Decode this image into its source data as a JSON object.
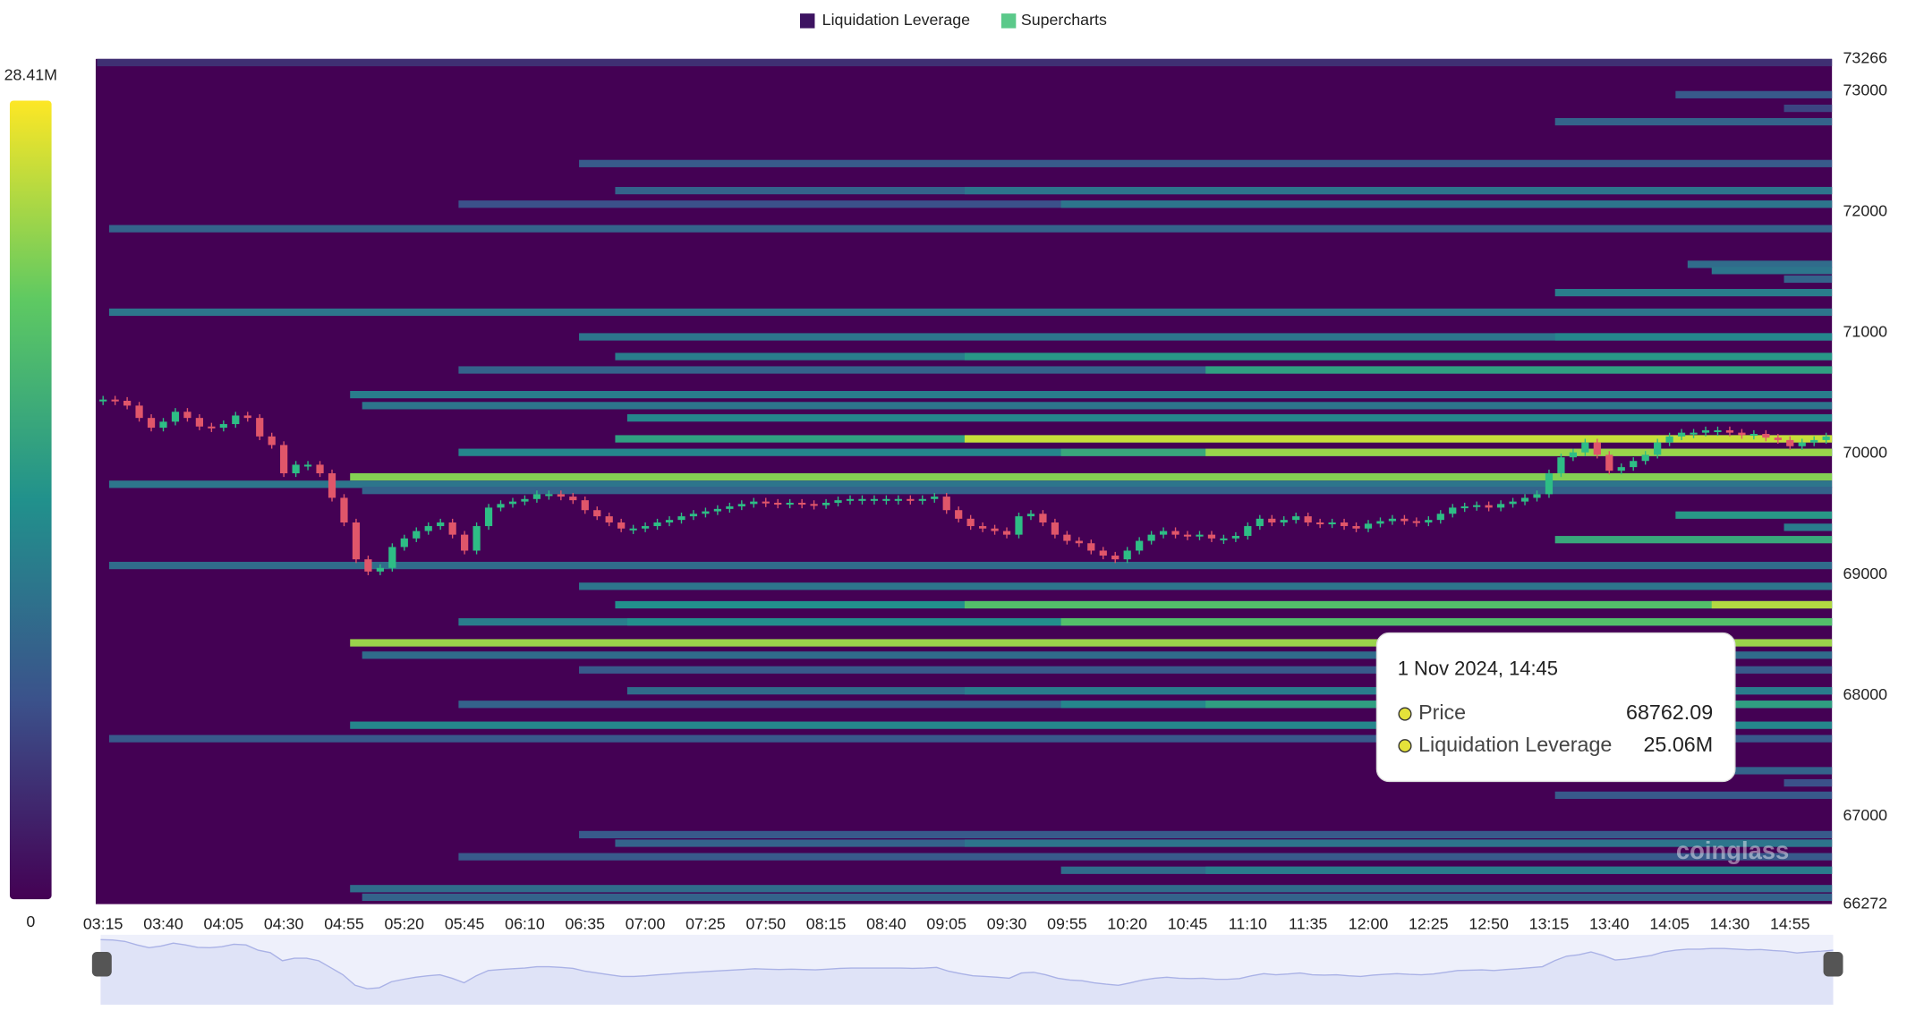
{
  "chart_data": {
    "type": "liquidation-heatmap",
    "legend": [
      {
        "name": "Liquidation Leverage",
        "color": "#3d1361"
      },
      {
        "name": "Supercharts",
        "color": "#5bc98a"
      }
    ],
    "categories": [
      "03:15",
      null,
      null,
      null,
      null,
      "03:40",
      null,
      null,
      null,
      null,
      "04:05",
      null,
      null,
      null,
      null,
      "04:30",
      null,
      null,
      null,
      null,
      "04:55",
      null,
      null,
      null,
      null,
      "05:20",
      null,
      null,
      null,
      null,
      "05:45",
      null,
      null,
      null,
      null,
      "06:10",
      null,
      null,
      null,
      null,
      "06:35",
      null,
      null,
      null,
      null,
      "07:00",
      null,
      null,
      null,
      null,
      "07:25",
      null,
      null,
      null,
      null,
      "07:50",
      null,
      null,
      null,
      null,
      "08:15",
      null,
      null,
      null,
      null,
      "08:40",
      null,
      null,
      null,
      null,
      "09:05",
      null,
      null,
      null,
      null,
      "09:30",
      null,
      null,
      null,
      null,
      "09:55",
      null,
      null,
      null,
      null,
      "10:20",
      null,
      null,
      null,
      null,
      "10:45",
      null,
      null,
      null,
      null,
      "11:10",
      null,
      null,
      null,
      null,
      "11:35",
      null,
      null,
      null,
      null,
      "12:00",
      null,
      null,
      null,
      null,
      "12:25",
      null,
      null,
      null,
      null,
      "12:50",
      null,
      null,
      null,
      null,
      "13:15",
      null,
      null,
      null,
      null,
      "13:40",
      null,
      null,
      null,
      null,
      "14:05",
      null,
      null,
      null,
      null,
      "14:30",
      null,
      null,
      null,
      null,
      "14:55",
      null,
      null,
      null
    ],
    "series": [
      {
        "name": "Supercharts",
        "up_color": "#2ebd85",
        "down_color": "#e0566a",
        "values": [
          70447,
          70437,
          70397,
          70295,
          70214,
          70264,
          70346,
          70295,
          70224,
          70214,
          70244,
          70315,
          70295,
          70142,
          70071,
          69837,
          69908,
          69908,
          69837,
          69634,
          69430,
          69125,
          69024,
          69054,
          69227,
          69298,
          69359,
          69400,
          69430,
          69329,
          69197,
          69400,
          69553,
          69583,
          69603,
          69624,
          69664,
          69664,
          69644,
          69614,
          69532,
          69481,
          69430,
          69380,
          69380,
          69400,
          69430,
          69451,
          69481,
          69502,
          69522,
          69542,
          69563,
          69583,
          69603,
          69593,
          69583,
          69593,
          69583,
          69573,
          69593,
          69614,
          69624,
          69624,
          69624,
          69624,
          69624,
          69614,
          69624,
          69644,
          69532,
          69461,
          69400,
          69380,
          69359,
          69329,
          69481,
          69502,
          69430,
          69329,
          69278,
          69258,
          69197,
          69156,
          69125,
          69197,
          69278,
          69329,
          69359,
          69329,
          69319,
          69329,
          69298,
          69298,
          69319,
          69400,
          69461,
          69430,
          69451,
          69481,
          69430,
          69420,
          69430,
          69400,
          69380,
          69420,
          69441,
          69461,
          69441,
          69430,
          69451,
          69502,
          69553,
          69563,
          69573,
          69553,
          69583,
          69603,
          69634,
          69664,
          69837,
          69969,
          70010,
          70092,
          69990,
          69858,
          69888,
          69939,
          69990,
          70092,
          70142,
          70173,
          70173,
          70193,
          70193,
          70173,
          70153,
          70163,
          70132,
          70112,
          70061,
          70092,
          70112,
          70142
        ]
      }
    ],
    "heatmap": {
      "name": "Liquidation Leverage",
      "bands": [
        {
          "price": 73250,
          "start": 0,
          "value": 4
        },
        {
          "price": 72970,
          "start": 131,
          "value": 8
        },
        {
          "price": 72857,
          "start": 140,
          "value": 6
        },
        {
          "price": 72746,
          "start": 121,
          "value": 9
        },
        {
          "price": 72400,
          "start": 40,
          "value": 8
        },
        {
          "price": 72176,
          "start": 43,
          "value": 9
        },
        {
          "price": 72176,
          "start": 72,
          "value": 11
        },
        {
          "price": 72064,
          "start": 30,
          "value": 7
        },
        {
          "price": 72064,
          "start": 80,
          "value": 11
        },
        {
          "price": 71861,
          "start": 1,
          "value": 9
        },
        {
          "price": 71566,
          "start": 132,
          "value": 10
        },
        {
          "price": 71515,
          "start": 134,
          "value": 11
        },
        {
          "price": 71444,
          "start": 140,
          "value": 9
        },
        {
          "price": 71332,
          "start": 121,
          "value": 12
        },
        {
          "price": 71170,
          "start": 1,
          "value": 11
        },
        {
          "price": 70966,
          "start": 40,
          "value": 11
        },
        {
          "price": 70966,
          "start": 121,
          "value": 13
        },
        {
          "price": 70803,
          "start": 43,
          "value": 12
        },
        {
          "price": 70803,
          "start": 72,
          "value": 15
        },
        {
          "price": 70692,
          "start": 30,
          "value": 9
        },
        {
          "price": 70692,
          "start": 92,
          "value": 16
        },
        {
          "price": 70488,
          "start": 21,
          "value": 12
        },
        {
          "price": 70397,
          "start": 22,
          "value": 11
        },
        {
          "price": 70295,
          "start": 44,
          "value": 13
        },
        {
          "price": 70122,
          "start": 43,
          "value": 16
        },
        {
          "price": 70122,
          "start": 72,
          "value": 26
        },
        {
          "price": 70010,
          "start": 30,
          "value": 13
        },
        {
          "price": 70010,
          "start": 80,
          "value": 17
        },
        {
          "price": 70010,
          "start": 92,
          "value": 24
        },
        {
          "price": 69807,
          "start": 21,
          "value": 23
        },
        {
          "price": 69746,
          "start": 1,
          "value": 11
        },
        {
          "price": 69695,
          "start": 22,
          "value": 9
        },
        {
          "price": 69491,
          "start": 131,
          "value": 15
        },
        {
          "price": 69390,
          "start": 140,
          "value": 12
        },
        {
          "price": 69288,
          "start": 121,
          "value": 17
        },
        {
          "price": 69074,
          "start": 1,
          "value": 10
        },
        {
          "price": 68902,
          "start": 40,
          "value": 11
        },
        {
          "price": 68749,
          "start": 43,
          "value": 14
        },
        {
          "price": 68749,
          "start": 72,
          "value": 20
        },
        {
          "price": 68749,
          "start": 134,
          "value": 25.06
        },
        {
          "price": 68607,
          "start": 30,
          "value": 12
        },
        {
          "price": 68607,
          "start": 44,
          "value": 14
        },
        {
          "price": 68607,
          "start": 80,
          "value": 20
        },
        {
          "price": 68434,
          "start": 21,
          "value": 24
        },
        {
          "price": 68332,
          "start": 22,
          "value": 10
        },
        {
          "price": 68210,
          "start": 40,
          "value": 8
        },
        {
          "price": 68037,
          "start": 44,
          "value": 10
        },
        {
          "price": 68037,
          "start": 72,
          "value": 12
        },
        {
          "price": 67925,
          "start": 30,
          "value": 9
        },
        {
          "price": 67925,
          "start": 80,
          "value": 13
        },
        {
          "price": 67925,
          "start": 92,
          "value": 16
        },
        {
          "price": 67752,
          "start": 21,
          "value": 13
        },
        {
          "price": 67641,
          "start": 1,
          "value": 8
        },
        {
          "price": 67376,
          "start": 131,
          "value": 9
        },
        {
          "price": 67275,
          "start": 140,
          "value": 7
        },
        {
          "price": 67173,
          "start": 121,
          "value": 8
        },
        {
          "price": 66847,
          "start": 40,
          "value": 8
        },
        {
          "price": 66776,
          "start": 43,
          "value": 9
        },
        {
          "price": 66776,
          "start": 72,
          "value": 11
        },
        {
          "price": 66664,
          "start": 30,
          "value": 8
        },
        {
          "price": 66552,
          "start": 80,
          "value": 10
        },
        {
          "price": 66552,
          "start": 92,
          "value": 12
        },
        {
          "price": 66400,
          "start": 21,
          "value": 10
        },
        {
          "price": 66329,
          "start": 22,
          "value": 9
        }
      ]
    },
    "colorbar": {
      "lim": [
        0,
        28.41
      ],
      "ticks": [
        {
          "value": 28.41,
          "label": "28.41M"
        },
        0
      ]
    },
    "ylim": [
      66272,
      73266
    ],
    "yticks": [
      66272,
      67000,
      68000,
      69000,
      70000,
      71000,
      72000,
      73000,
      73266
    ],
    "tooltip": {
      "title": "1 Nov 2024, 14:45",
      "items": [
        {
          "name": "Price",
          "value": 68762.09
        },
        {
          "name": "Liquidation Leverage",
          "value": 25.06,
          "value_label": "25.06M"
        }
      ]
    },
    "watermark": "coinglass"
  }
}
